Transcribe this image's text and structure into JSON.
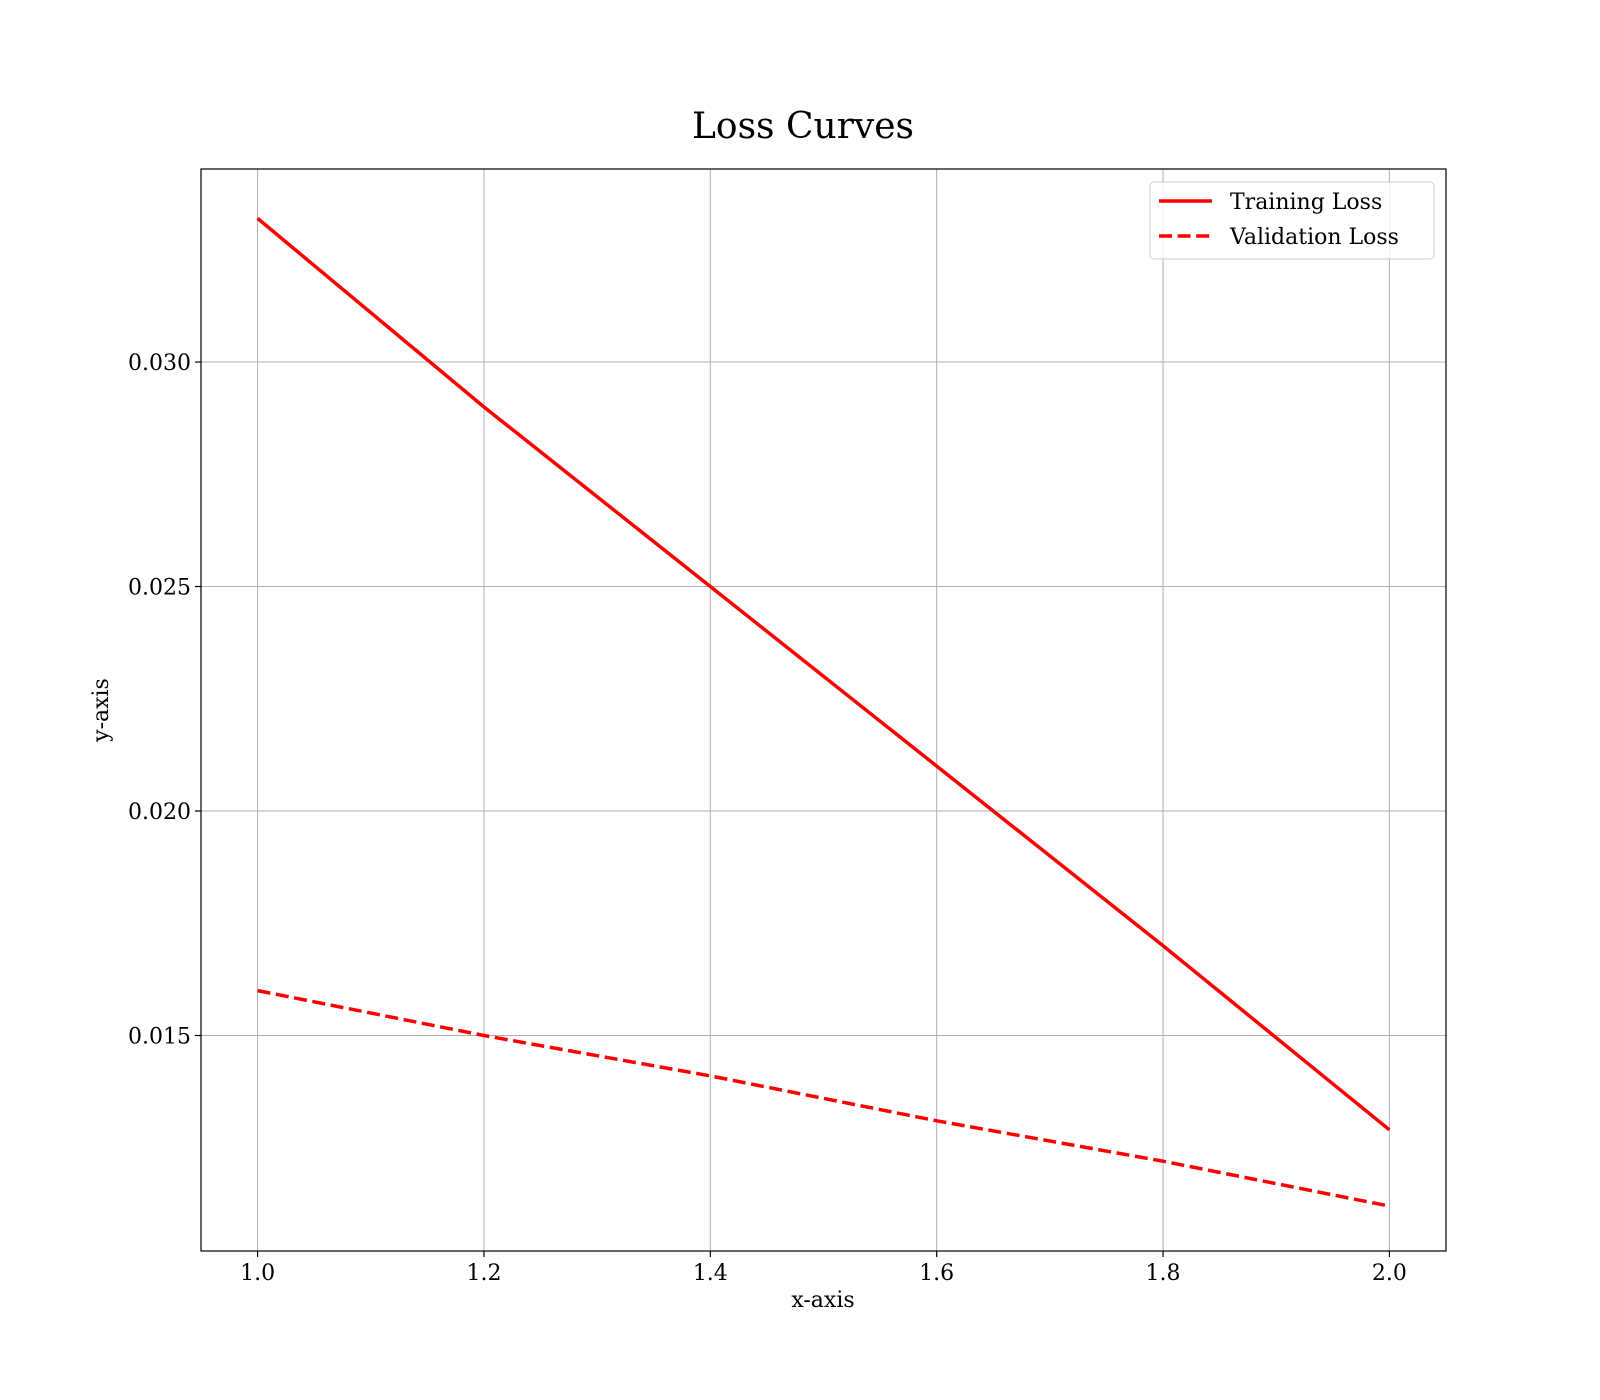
{
  "chart_data": {
    "type": "line",
    "title": "Loss Curves",
    "xlabel": "x-axis",
    "ylabel": "y-axis",
    "xlim": [
      0.95,
      2.05
    ],
    "ylim": [
      0.0102,
      0.0343
    ],
    "xticks": [
      1.0,
      1.2,
      1.4,
      1.6,
      1.8,
      2.0
    ],
    "xtick_labels": [
      "1.0",
      "1.2",
      "1.4",
      "1.6",
      "1.8",
      "2.0"
    ],
    "yticks": [
      0.015,
      0.02,
      0.025,
      0.03
    ],
    "ytick_labels": [
      "0.015",
      "0.020",
      "0.025",
      "0.030"
    ],
    "grid": true,
    "legend_position": "top-right",
    "series": [
      {
        "name": "Training Loss",
        "color": "#ff0000",
        "style": "solid",
        "x": [
          1.0,
          1.2,
          1.4,
          1.6,
          1.8,
          2.0
        ],
        "y": [
          0.0332,
          0.029,
          0.025,
          0.021,
          0.017,
          0.0129
        ]
      },
      {
        "name": "Validation Loss",
        "color": "#ff0000",
        "style": "dashed",
        "x": [
          1.0,
          1.2,
          1.4,
          1.6,
          1.8,
          2.0
        ],
        "y": [
          0.016,
          0.015,
          0.0141,
          0.0131,
          0.0122,
          0.0112
        ]
      }
    ]
  }
}
